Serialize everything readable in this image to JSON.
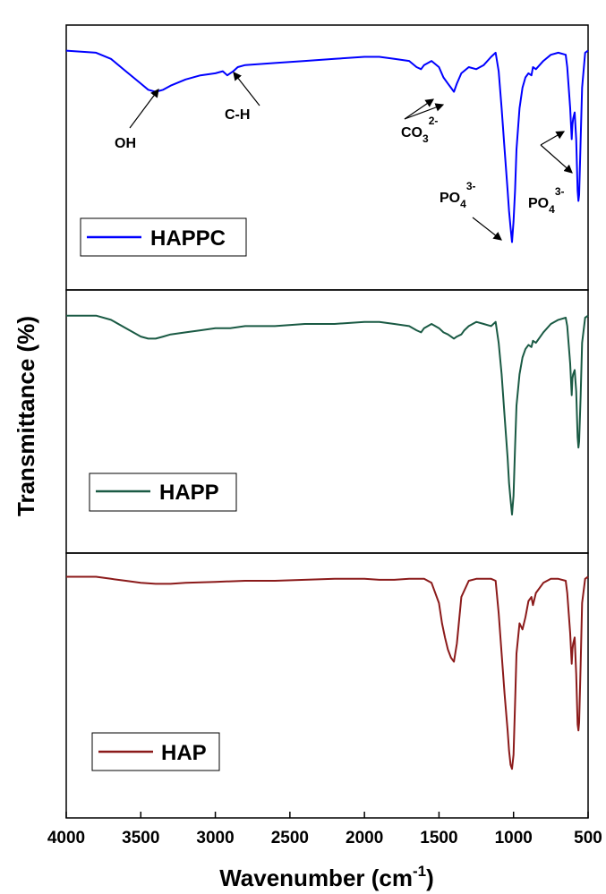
{
  "chart_data": {
    "type": "line",
    "x_label": "Wavenumber (cm",
    "x_label_sup": "-1",
    "x_label_close": ")",
    "y_label": "Transmittance (%)",
    "xlim": [
      4000,
      500
    ],
    "x_ticks": [
      "4000",
      "3500",
      "3000",
      "2500",
      "2000",
      "1500",
      "1000",
      "500"
    ],
    "x_tick_values": [
      4000,
      3500,
      3000,
      2500,
      2000,
      1500,
      1000,
      500
    ],
    "series": [
      {
        "name": "HAPPC",
        "color": "#0000ff",
        "x": [
          4000,
          3800,
          3700,
          3600,
          3500,
          3450,
          3400,
          3350,
          3300,
          3200,
          3100,
          3000,
          2950,
          2920,
          2880,
          2850,
          2800,
          2600,
          2400,
          2200,
          2000,
          1900,
          1800,
          1700,
          1650,
          1620,
          1600,
          1550,
          1500,
          1470,
          1440,
          1420,
          1400,
          1380,
          1350,
          1300,
          1250,
          1200,
          1150,
          1120,
          1100,
          1080,
          1060,
          1040,
          1030,
          1020,
          1010,
          1000,
          990,
          980,
          960,
          940,
          920,
          900,
          880,
          870,
          850,
          800,
          750,
          700,
          650,
          640,
          620,
          610,
          605,
          600,
          590,
          580,
          570,
          565,
          560,
          550,
          540,
          520,
          500
        ],
        "y": [
          98,
          97,
          94,
          88,
          82,
          79,
          78,
          79,
          81,
          84,
          86,
          87,
          88,
          86,
          88,
          90,
          91,
          92,
          93,
          94,
          95,
          95,
          94,
          93,
          90,
          89,
          91,
          93,
          90,
          85,
          82,
          80,
          78,
          82,
          87,
          90,
          89,
          91,
          95,
          97,
          88,
          70,
          50,
          30,
          20,
          12,
          5,
          15,
          30,
          50,
          70,
          80,
          85,
          87,
          86,
          90,
          89,
          93,
          96,
          97,
          96,
          90,
          70,
          55,
          62,
          65,
          68,
          55,
          30,
          25,
          28,
          55,
          80,
          97,
          98
        ]
      },
      {
        "name": "HAPP",
        "color": "#1a5a44",
        "x": [
          4000,
          3800,
          3700,
          3600,
          3500,
          3450,
          3400,
          3350,
          3300,
          3200,
          3100,
          3000,
          2900,
          2800,
          2600,
          2400,
          2300,
          2200,
          2000,
          1900,
          1800,
          1700,
          1650,
          1620,
          1600,
          1550,
          1500,
          1470,
          1440,
          1420,
          1400,
          1380,
          1350,
          1330,
          1300,
          1250,
          1200,
          1150,
          1120,
          1100,
          1080,
          1060,
          1040,
          1030,
          1020,
          1010,
          1000,
          990,
          980,
          960,
          940,
          920,
          900,
          880,
          870,
          850,
          800,
          750,
          700,
          650,
          640,
          620,
          610,
          605,
          600,
          590,
          580,
          570,
          565,
          560,
          550,
          540,
          520,
          500
        ],
        "y": [
          98,
          98,
          96,
          92,
          88,
          87,
          87,
          88,
          89,
          90,
          91,
          92,
          92,
          93,
          93,
          94,
          94,
          94,
          95,
          95,
          94,
          93,
          91,
          90,
          92,
          94,
          92,
          90,
          89,
          88,
          87,
          88,
          89,
          91,
          93,
          95,
          94,
          93,
          95,
          85,
          70,
          50,
          30,
          18,
          10,
          3,
          12,
          35,
          55,
          70,
          78,
          82,
          84,
          83,
          86,
          85,
          90,
          94,
          96,
          97,
          93,
          75,
          60,
          68,
          70,
          72,
          62,
          40,
          35,
          38,
          60,
          85,
          97,
          98
        ]
      },
      {
        "name": "HAP",
        "color": "#8b1a1a",
        "x": [
          4000,
          3800,
          3700,
          3600,
          3500,
          3400,
          3300,
          3200,
          3000,
          2800,
          2600,
          2400,
          2200,
          2000,
          1900,
          1800,
          1700,
          1600,
          1550,
          1500,
          1480,
          1460,
          1440,
          1420,
          1400,
          1380,
          1350,
          1300,
          1250,
          1200,
          1150,
          1120,
          1100,
          1080,
          1060,
          1040,
          1030,
          1020,
          1010,
          1000,
          990,
          980,
          960,
          940,
          920,
          900,
          880,
          870,
          850,
          800,
          750,
          700,
          650,
          640,
          620,
          610,
          605,
          600,
          590,
          580,
          570,
          565,
          560,
          550,
          540,
          520,
          500
        ],
        "y": [
          98,
          98,
          97,
          96,
          95,
          94.5,
          94.5,
          95,
          95.5,
          96,
          96,
          96.5,
          97,
          97,
          96.5,
          96.5,
          97,
          97,
          95,
          85,
          75,
          68,
          62,
          58,
          56,
          65,
          88,
          96,
          97,
          97,
          97,
          96,
          80,
          60,
          40,
          22,
          12,
          5,
          3,
          10,
          35,
          60,
          75,
          72,
          78,
          86,
          88,
          84,
          90,
          95,
          97,
          97,
          96,
          90,
          70,
          55,
          62,
          65,
          68,
          50,
          25,
          22,
          26,
          55,
          85,
          97,
          98
        ]
      }
    ],
    "annotations": {
      "oh": "OH",
      "ch": "C-H",
      "co3_base": "CO",
      "co3_sub": "3",
      "co3_sup": "2-",
      "po4_base": "PO",
      "po4_sub": "4",
      "po4_sup": "3-"
    }
  }
}
